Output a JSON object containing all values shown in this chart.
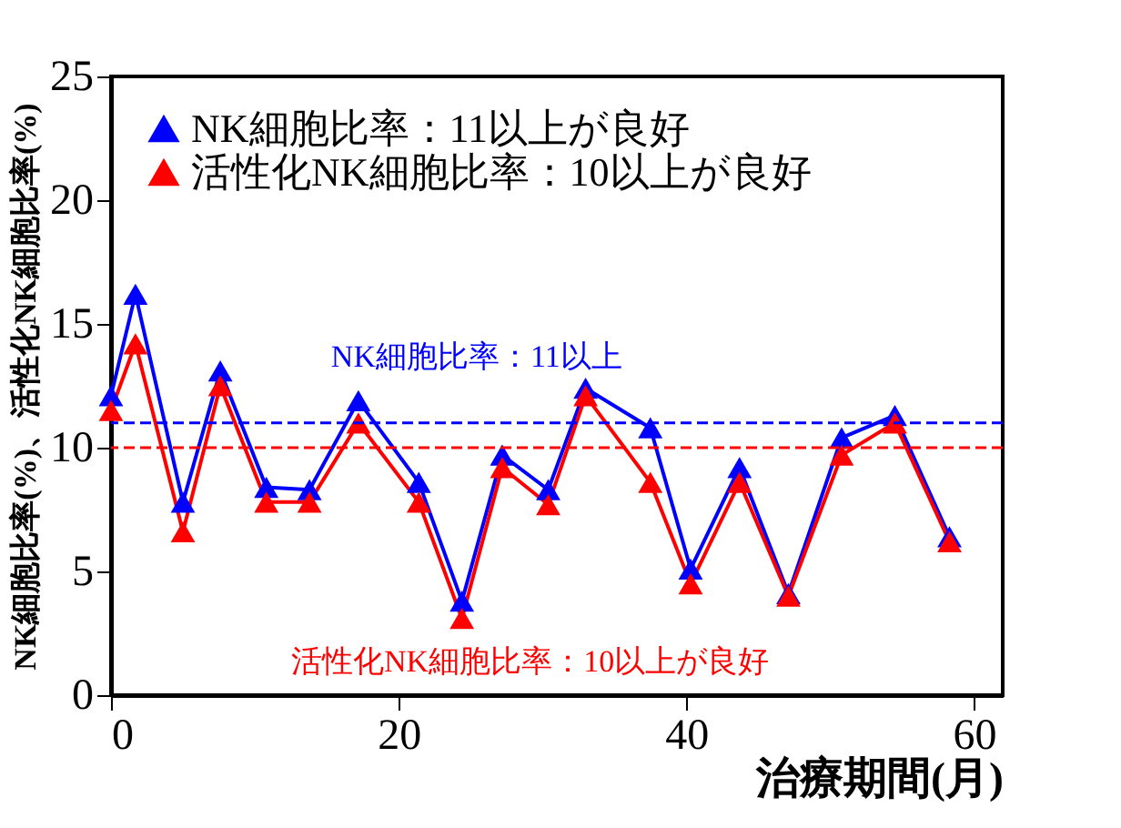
{
  "chart_data": {
    "type": "line",
    "xlabel": "治療期間(月)",
    "ylabel": "NK細胞比率(%)、活性化NK細胞比率(%)",
    "xlim": [
      0,
      62
    ],
    "xticks": [
      0,
      20,
      40,
      60
    ],
    "ylim": [
      0,
      25
    ],
    "yticks": [
      0,
      5,
      10,
      15,
      20,
      25
    ],
    "marker": "triangle",
    "line_style": "solid",
    "grid": false,
    "legend": "top left",
    "x": [
      0,
      1.7,
      5,
      7.6,
      10.8,
      13.8,
      17.2,
      21.4,
      24.4,
      27.2,
      30.4,
      33,
      37.5,
      40.3,
      43.7,
      47.1,
      50.8,
      54.5,
      58.3
    ],
    "series": [
      {
        "name": "NK細胞比率：11以上が良好",
        "color": "#0000ff",
        "values": [
          12.1,
          16.2,
          7.8,
          13.1,
          8.4,
          8.3,
          11.9,
          8.6,
          3.8,
          9.7,
          8.3,
          12.4,
          10.8,
          5.1,
          9.2,
          4.1,
          10.4,
          11.3,
          6.4
        ]
      },
      {
        "name": "活性化NK細胞比率：10以上が良好",
        "color": "#ff0000",
        "values": [
          11.5,
          14.2,
          6.6,
          12.5,
          7.8,
          7.8,
          11.0,
          7.8,
          3.1,
          9.2,
          7.7,
          12.1,
          8.6,
          4.5,
          8.6,
          4.0,
          9.7,
          11.0,
          6.2
        ]
      }
    ],
    "ref_lines": [
      {
        "axis": "y",
        "value": 11,
        "label": "NK細胞比率：11以上",
        "color": "#0000ff",
        "line_style": "dashed"
      },
      {
        "axis": "y",
        "value": 10,
        "label": "活性化NK細胞比率：10以上が良好",
        "color": "#ff0000",
        "line_style": "dashed"
      }
    ]
  }
}
